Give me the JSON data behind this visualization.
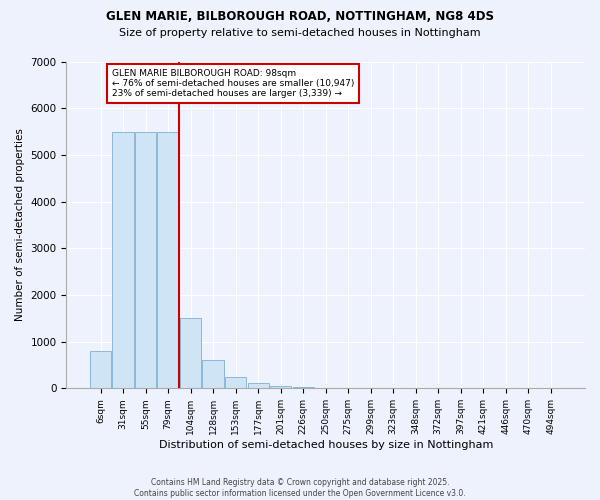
{
  "title1": "GLEN MARIE, BILBOROUGH ROAD, NOTTINGHAM, NG8 4DS",
  "title2": "Size of property relative to semi-detached houses in Nottingham",
  "xlabel": "Distribution of semi-detached houses by size in Nottingham",
  "ylabel": "Number of semi-detached properties",
  "categories": [
    "6sqm",
    "31sqm",
    "55sqm",
    "79sqm",
    "104sqm",
    "128sqm",
    "153sqm",
    "177sqm",
    "201sqm",
    "226sqm",
    "250sqm",
    "275sqm",
    "299sqm",
    "323sqm",
    "348sqm",
    "372sqm",
    "397sqm",
    "421sqm",
    "446sqm",
    "470sqm",
    "494sqm"
  ],
  "bar_heights": [
    800,
    5500,
    5500,
    5500,
    1500,
    600,
    250,
    120,
    50,
    20,
    10,
    0,
    0,
    0,
    0,
    0,
    0,
    0,
    0,
    0,
    0
  ],
  "red_line_x": 3.5,
  "annotation_title": "GLEN MARIE BILBOROUGH ROAD: 98sqm",
  "annotation_line1": "← 76% of semi-detached houses are smaller (10,947)",
  "annotation_line2": "23% of semi-detached houses are larger (3,339) →",
  "bar_color": "#cfe5f5",
  "bar_edge_color": "#8ab8d8",
  "line_color": "#cc0000",
  "annotation_box_color": "white",
  "annotation_box_edge": "#cc0000",
  "background_color": "#eef2fc",
  "ylim": [
    0,
    7000
  ],
  "yticks": [
    0,
    1000,
    2000,
    3000,
    4000,
    5000,
    6000,
    7000
  ],
  "footer1": "Contains HM Land Registry data © Crown copyright and database right 2025.",
  "footer2": "Contains public sector information licensed under the Open Government Licence v3.0."
}
